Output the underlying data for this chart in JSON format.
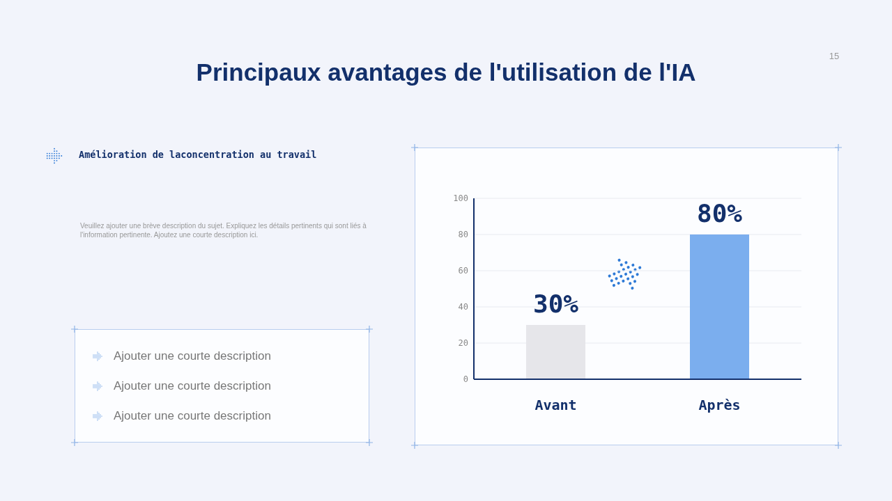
{
  "chart_data": {
    "type": "bar",
    "title": "Principaux avantages de l'utilisation de l'IA",
    "annotations": [
      "15",
      "Amélioration de laconcentration au travail",
      "Veuillez ajouter une brève description du sujet. Expliquez les détails pertinents qui sont liés à l'information pertinente. Ajoutez une courte description ici.",
      "Ajouter une courte description",
      "Ajouter une courte description",
      "Ajouter une courte description"
    ],
    "categories": [
      "Avant",
      "Après"
    ],
    "values": [
      30,
      80
    ],
    "colors": [
      "#e6e6ea",
      "#7baeee"
    ],
    "value_labels": [
      "30%",
      "80%"
    ],
    "ylim": [
      0,
      100
    ],
    "yticks": [
      0,
      20,
      40,
      60,
      80,
      100
    ],
    "grid": "y"
  }
}
